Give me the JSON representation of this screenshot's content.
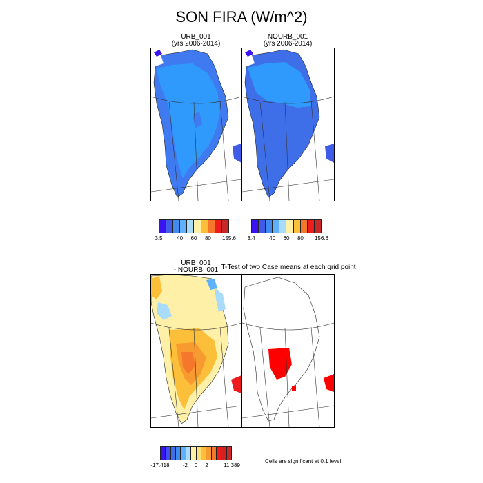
{
  "figure": {
    "title": "SON FIRA (W/m^2)"
  },
  "panels": {
    "urb": {
      "title_line1": "URB_001",
      "title_line2": "(yrs 2006-2014)"
    },
    "nourb": {
      "title_line1": "NOURB_001",
      "title_line2": "(yrs 2006-2014)"
    },
    "diff": {
      "title_line1": "URB_001",
      "title_line2": "- NOURB_001"
    },
    "ttest": {
      "title": "T-Test of two Case means at each grid point"
    }
  },
  "colorbars": {
    "urb": {
      "ticks": [
        "3.5",
        "40",
        "60",
        "80",
        "155.6"
      ],
      "colors": [
        "#3b13f2",
        "#3f5be8",
        "#3f8bf0",
        "#5fb1fb",
        "#a9dcfb",
        "#fff0a8",
        "#fbbf3a",
        "#f5772b",
        "#ee1c1c",
        "#c8282a"
      ]
    },
    "nourb": {
      "ticks": [
        "3.4",
        "40",
        "60",
        "80",
        "156.6"
      ],
      "colors": [
        "#3b13f2",
        "#3f5be8",
        "#3f8bf0",
        "#5fb1fb",
        "#a9dcfb",
        "#fff0a8",
        "#fbbf3a",
        "#f5772b",
        "#ee1c1c",
        "#c8282a"
      ]
    },
    "diff": {
      "ticks": [
        "-17.418",
        "-2",
        "0",
        "2",
        "11.389"
      ],
      "colors": [
        "#3b13f2",
        "#3f4ff0",
        "#3f6fe8",
        "#3f8bf0",
        "#5fb1fb",
        "#a9dcfb",
        "#fff0a8",
        "#fce07a",
        "#fbbf3a",
        "#f79a30",
        "#f5772b",
        "#ee1c1c",
        "#d42020",
        "#c8282a"
      ]
    }
  },
  "ttest_note": "Cells are significant at 0.1 level"
}
